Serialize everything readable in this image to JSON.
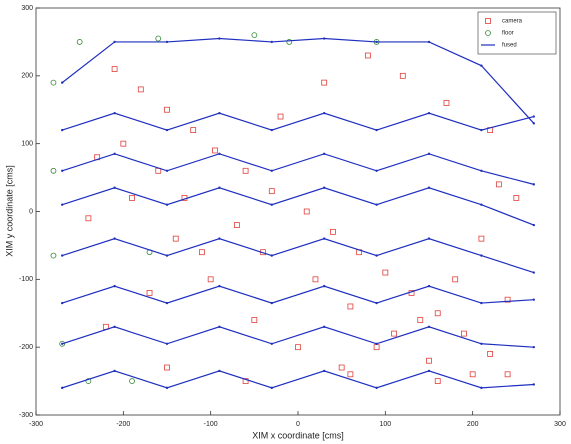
{
  "chart_data": {
    "type": "scatter",
    "xlabel": "XIM x coordinate [cms]",
    "ylabel": "XIM y coordinate [cms]",
    "xlim": [
      -300,
      300
    ],
    "ylim": [
      -300,
      300
    ],
    "xticks": [
      -300,
      -200,
      -100,
      0,
      100,
      200,
      300
    ],
    "yticks": [
      -300,
      -200,
      -100,
      0,
      100,
      200,
      300
    ],
    "legend": "upper right",
    "series": [
      {
        "name": "camera",
        "color": "#e0403a",
        "marker": "square",
        "x": [
          -210,
          -180,
          -150,
          -120,
          -95,
          -60,
          -30,
          10,
          40,
          70,
          100,
          130,
          160,
          190,
          220,
          240,
          -200,
          -160,
          -130,
          -70,
          -40,
          20,
          60,
          110,
          150,
          200,
          230,
          -230,
          -190,
          -140,
          -100,
          -50,
          0,
          50,
          90,
          140,
          180,
          210,
          250,
          -220,
          -170,
          -110,
          -20,
          30,
          80,
          120,
          170,
          220,
          -150,
          -60,
          60,
          160,
          240,
          -240
        ],
        "y": [
          210,
          180,
          150,
          120,
          90,
          60,
          30,
          0,
          -30,
          -60,
          -90,
          -120,
          -150,
          -180,
          -210,
          -240,
          100,
          60,
          20,
          -20,
          -60,
          -100,
          -140,
          -180,
          -220,
          -240,
          40,
          80,
          20,
          -40,
          -100,
          -160,
          -200,
          -230,
          -200,
          -160,
          -100,
          -40,
          20,
          -170,
          -120,
          -60,
          140,
          190,
          230,
          200,
          160,
          120,
          -230,
          -250,
          -240,
          -250,
          -130,
          -10
        ]
      },
      {
        "name": "floor",
        "color": "#3a8a3a",
        "marker": "circle",
        "x": [
          -280,
          -250,
          -160,
          -50,
          -10,
          90,
          -280,
          -270,
          -240,
          -280,
          -190,
          -170
        ],
        "y": [
          190,
          250,
          255,
          260,
          250,
          250,
          60,
          -195,
          -250,
          -65,
          -250,
          -60
        ]
      },
      {
        "name": "fused",
        "color": "#1f2fbf",
        "marker": "line",
        "x": [
          -270,
          -210,
          -150,
          -90,
          -30,
          30,
          90,
          150,
          210,
          270,
          null,
          -270,
          -210,
          -150,
          -90,
          -30,
          30,
          90,
          150,
          210,
          270,
          null,
          -270,
          -210,
          -150,
          -90,
          -30,
          30,
          90,
          150,
          210,
          270,
          null,
          -270,
          -210,
          -150,
          -90,
          -30,
          30,
          90,
          150,
          210,
          270,
          null,
          -270,
          -210,
          -150,
          -90,
          -30,
          30,
          90,
          150,
          210,
          270,
          null,
          -270,
          -210,
          -150,
          -90,
          -30,
          30,
          90,
          150,
          210,
          270,
          null,
          -270,
          -210,
          -150,
          -90,
          -30,
          30,
          90,
          150,
          210,
          270,
          null,
          -270,
          -210,
          -150,
          -90,
          -30,
          30,
          90,
          150,
          210,
          270
        ],
        "y": [
          190,
          250,
          250,
          255,
          250,
          255,
          250,
          250,
          215,
          130,
          null,
          120,
          145,
          120,
          145,
          120,
          145,
          120,
          145,
          120,
          140,
          null,
          60,
          85,
          60,
          85,
          60,
          85,
          60,
          85,
          60,
          40,
          null,
          10,
          35,
          10,
          35,
          10,
          35,
          10,
          35,
          10,
          -20,
          null,
          -65,
          -40,
          -65,
          -40,
          -65,
          -40,
          -65,
          -40,
          -65,
          -90,
          null,
          -135,
          -110,
          -135,
          -110,
          -135,
          -110,
          -135,
          -110,
          -135,
          -130,
          null,
          -195,
          -170,
          -195,
          -170,
          -195,
          -170,
          -195,
          -170,
          -195,
          -200,
          null,
          -260,
          -235,
          -260,
          -235,
          -260,
          -235,
          -260,
          -235,
          -260,
          -255
        ]
      }
    ]
  }
}
